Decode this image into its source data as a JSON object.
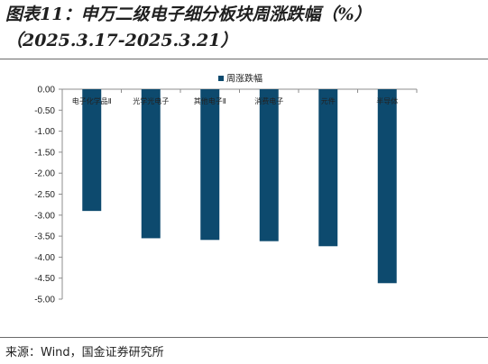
{
  "figure": {
    "title_line1": "图表11：申万二级电子细分板块周涨跌幅（%）",
    "title_line2": "（2025.3.17-2025.3.21）",
    "source": "来源：Wind，国金证券研究所"
  },
  "chart_data": {
    "type": "bar",
    "title": "",
    "xlabel": "",
    "ylabel": "",
    "categories": [
      "电子化学品Ⅱ",
      "光学光电子",
      "其他电子Ⅱ",
      "消费电子",
      "元件",
      "半导体"
    ],
    "series": [
      {
        "name": "周涨跌幅",
        "values": [
          -2.9,
          -3.55,
          -3.59,
          -3.62,
          -3.74,
          -4.62
        ],
        "color": "#0d4a6e"
      }
    ],
    "ylim": [
      -5.0,
      0.0
    ],
    "yticks": [
      0.0,
      -0.5,
      -1.0,
      -1.5,
      -2.0,
      -2.5,
      -3.0,
      -3.5,
      -4.0,
      -4.5,
      -5.0
    ],
    "ytick_labels": [
      "0.00",
      "-0.50",
      "-1.00",
      "-1.50",
      "-2.00",
      "-2.50",
      "-3.00",
      "-3.50",
      "-4.00",
      "-4.50",
      "-5.00"
    ],
    "grid": false,
    "legend_position": "top-center",
    "category_label_position": "top"
  }
}
